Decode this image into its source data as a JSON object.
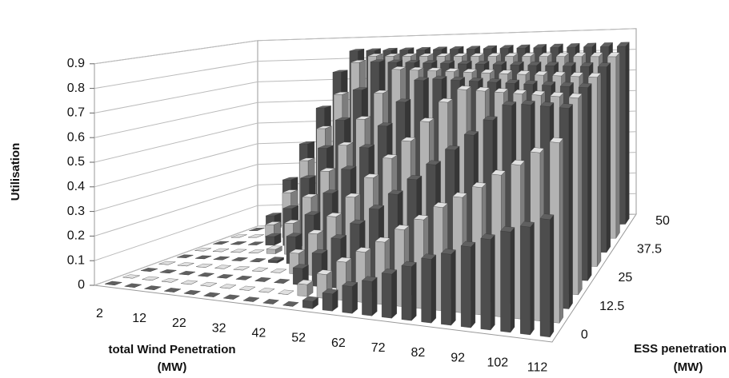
{
  "chart_data": {
    "type": "bar3d",
    "ylabel": "Utilisation",
    "xlabel": [
      "total Wind Penetration",
      "(MW)"
    ],
    "zlabel": [
      "ESS penetration",
      "(MW)"
    ],
    "categories": [
      "2",
      null,
      "12",
      null,
      "22",
      null,
      "32",
      null,
      "42",
      null,
      "52",
      null,
      "62",
      null,
      "72",
      null,
      "82",
      null,
      "92",
      null,
      "102",
      null,
      "112"
    ],
    "zcategories": [
      "0",
      null,
      "12.5",
      null,
      "25",
      null,
      "37.5",
      null,
      "50"
    ],
    "ylim": [
      0,
      0.9
    ],
    "yticks": [
      0,
      0.1,
      0.2,
      0.3,
      0.4,
      0.5,
      0.6,
      0.7,
      0.8,
      0.9
    ],
    "grid": true,
    "series": [
      {
        "color": "#4d4d4d",
        "values": [
          0,
          0,
          0,
          0,
          0,
          0,
          0,
          0,
          0,
          0,
          0.03,
          0.07,
          0.11,
          0.14,
          0.18,
          0.22,
          0.26,
          0.29,
          0.33,
          0.37,
          0.41,
          0.44,
          0.48
        ]
      },
      {
        "color": "#b3b3b3",
        "values": [
          0,
          0,
          0,
          0,
          0,
          0,
          0,
          0,
          0,
          0.05,
          0.1,
          0.16,
          0.21,
          0.26,
          0.32,
          0.37,
          0.43,
          0.48,
          0.53,
          0.59,
          0.64,
          0.7,
          0.75
        ]
      },
      {
        "color": "#4d4d4d",
        "values": [
          0,
          0,
          0,
          0,
          0,
          0,
          0,
          0,
          0.07,
          0.14,
          0.21,
          0.28,
          0.35,
          0.42,
          0.49,
          0.56,
          0.63,
          0.7,
          0.77,
          0.84,
          0.85,
          0.85,
          0.85
        ]
      },
      {
        "color": "#b3b3b3",
        "values": [
          0,
          0,
          0,
          0,
          0,
          0,
          0,
          0.09,
          0.18,
          0.26,
          0.35,
          0.44,
          0.53,
          0.61,
          0.7,
          0.79,
          0.85,
          0.85,
          0.85,
          0.85,
          0.85,
          0.85,
          0.85
        ]
      },
      {
        "color": "#4d4d4d",
        "values": [
          0,
          0,
          0,
          0,
          0,
          0.01,
          0.12,
          0.22,
          0.32,
          0.43,
          0.53,
          0.63,
          0.74,
          0.84,
          0.85,
          0.85,
          0.85,
          0.85,
          0.85,
          0.85,
          0.85,
          0.85,
          0.85
        ]
      },
      {
        "color": "#b3b3b3",
        "values": [
          0,
          0,
          0,
          0,
          0.02,
          0.14,
          0.26,
          0.38,
          0.5,
          0.62,
          0.74,
          0.85,
          0.85,
          0.85,
          0.85,
          0.85,
          0.85,
          0.85,
          0.85,
          0.85,
          0.85,
          0.85,
          0.85
        ]
      },
      {
        "color": "#4d4d4d",
        "values": [
          0,
          0,
          0,
          0.04,
          0.17,
          0.31,
          0.45,
          0.58,
          0.72,
          0.85,
          0.85,
          0.85,
          0.85,
          0.85,
          0.85,
          0.85,
          0.85,
          0.85,
          0.85,
          0.85,
          0.85,
          0.85,
          0.85
        ]
      },
      {
        "color": "#b3b3b3",
        "values": [
          0,
          0,
          0.06,
          0.21,
          0.36,
          0.51,
          0.67,
          0.82,
          0.85,
          0.85,
          0.85,
          0.85,
          0.85,
          0.85,
          0.85,
          0.85,
          0.85,
          0.85,
          0.85,
          0.85,
          0.85,
          0.85,
          0.85
        ]
      },
      {
        "color": "#4d4d4d",
        "values": [
          0,
          0.07,
          0.24,
          0.41,
          0.58,
          0.75,
          0.85,
          0.85,
          0.85,
          0.85,
          0.85,
          0.85,
          0.85,
          0.85,
          0.85,
          0.85,
          0.85,
          0.85,
          0.85,
          0.85,
          0.85,
          0.85,
          0.85
        ]
      }
    ]
  }
}
